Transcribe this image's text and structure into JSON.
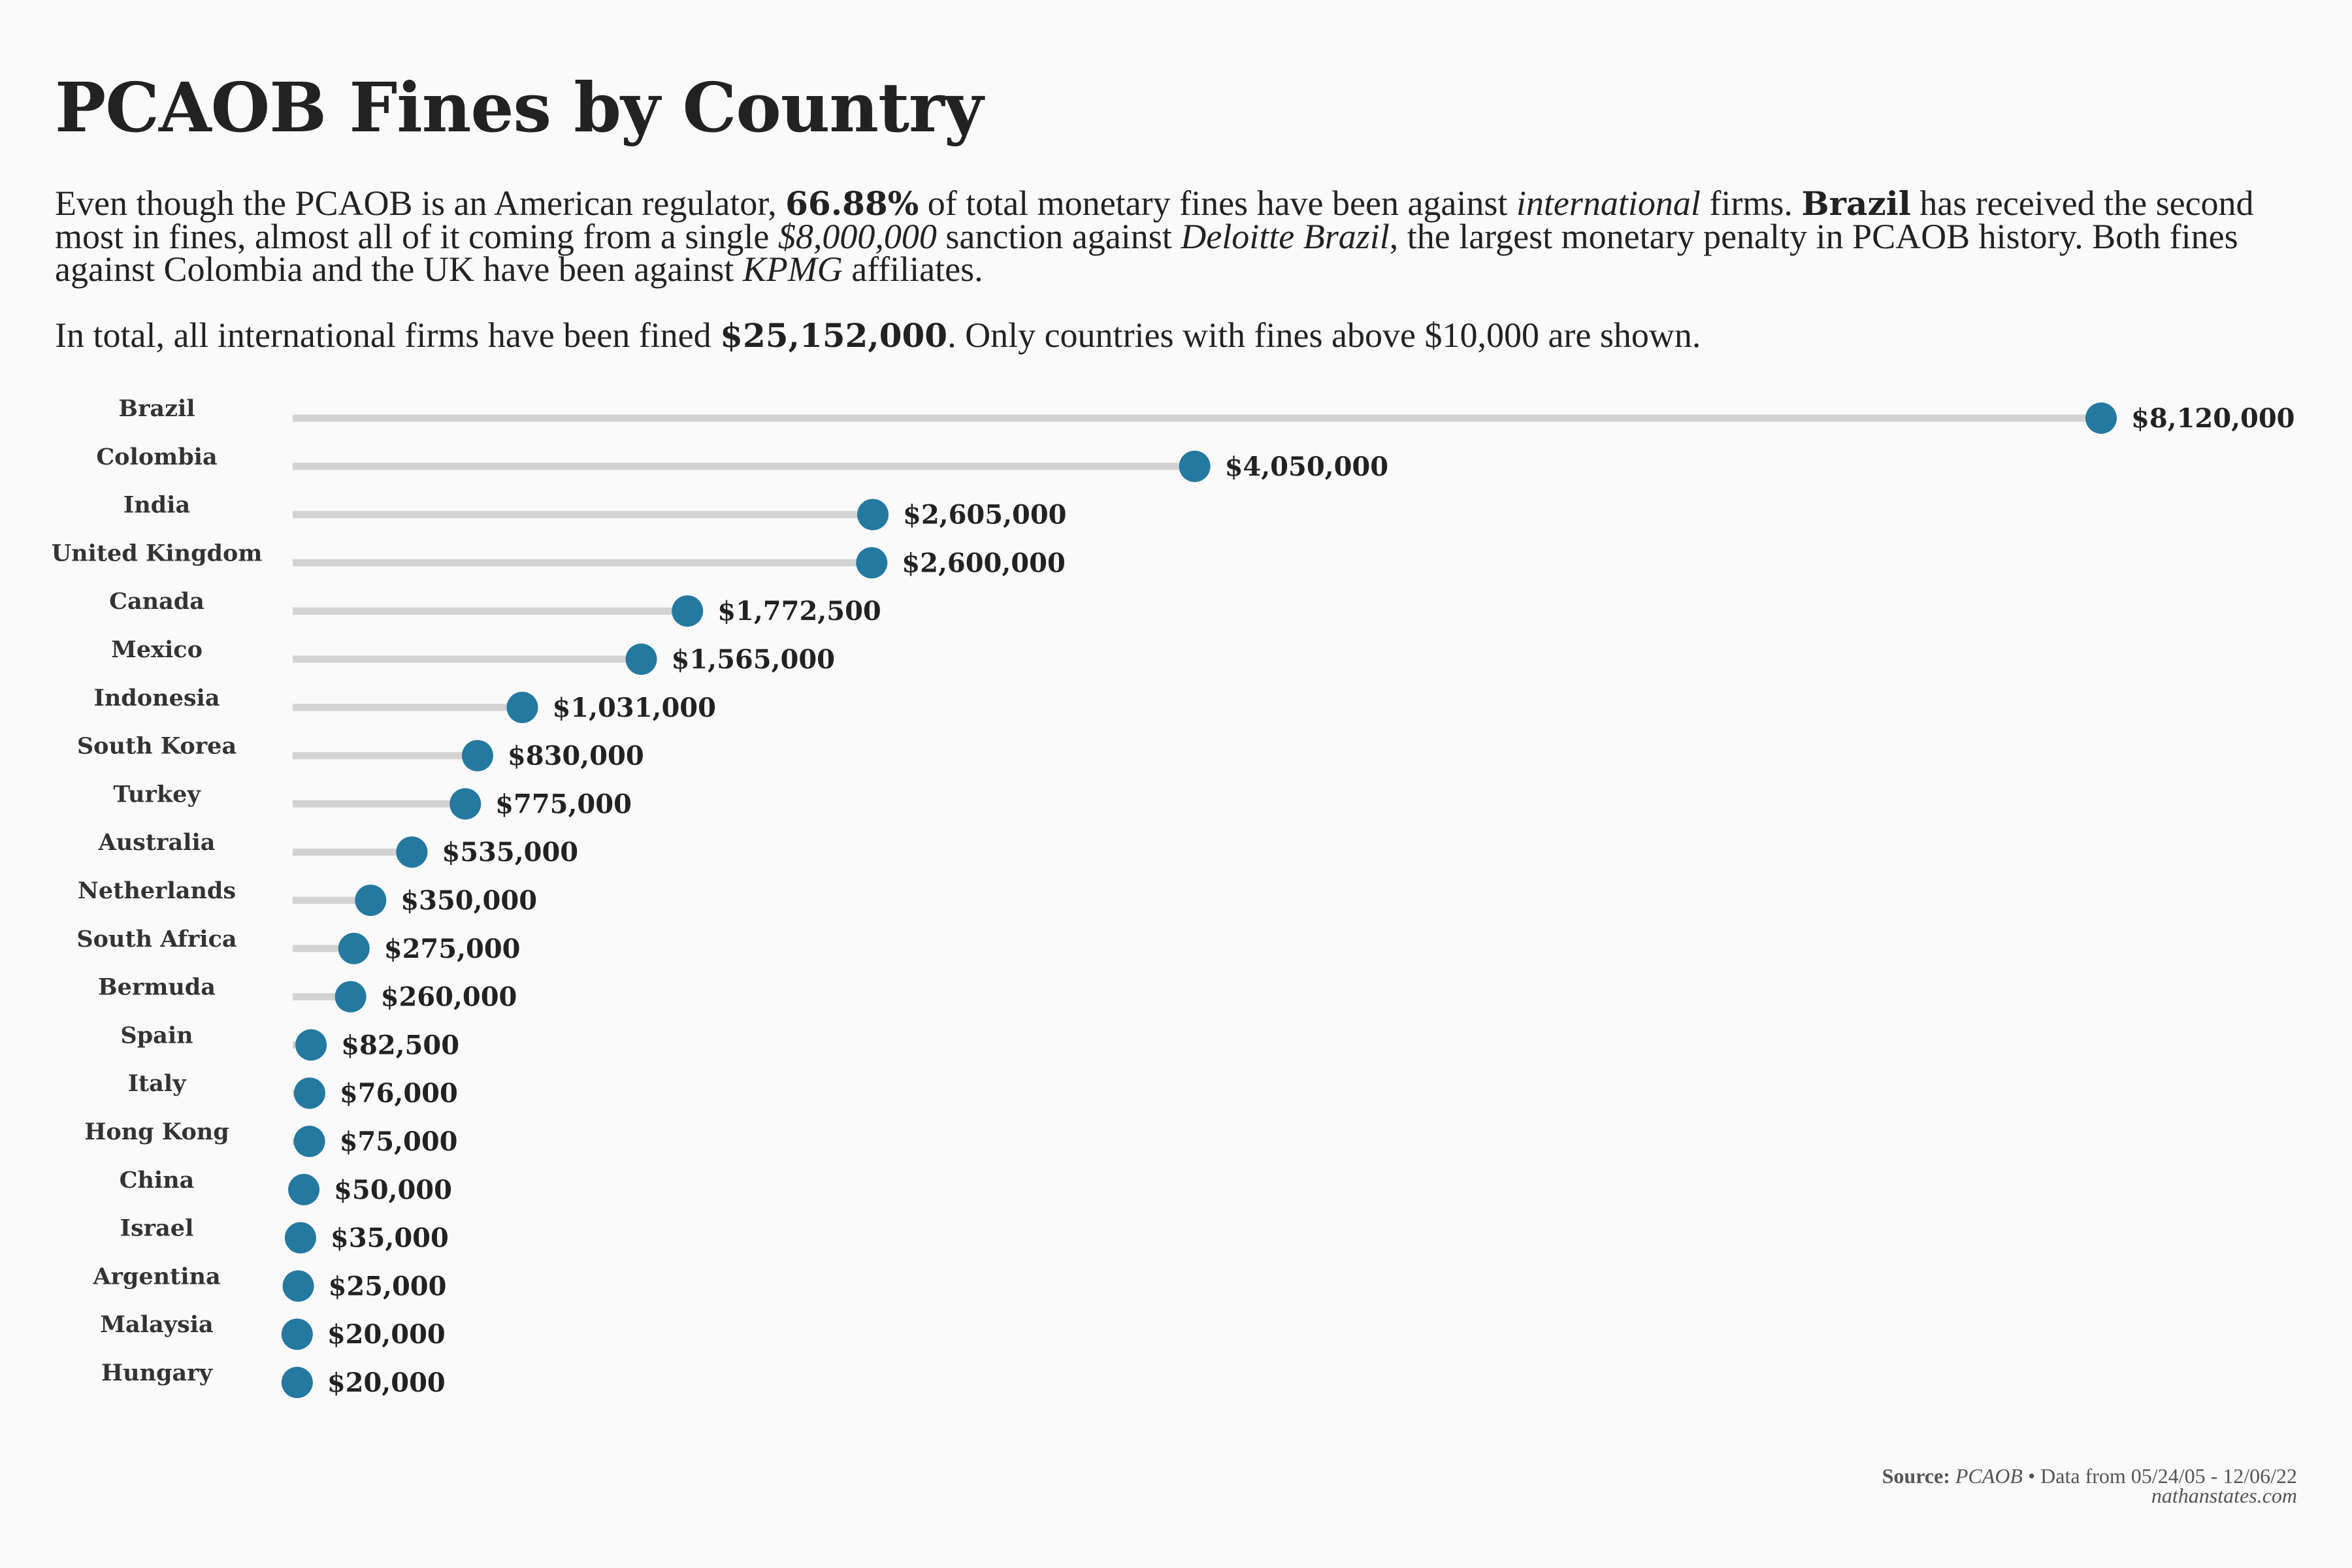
{
  "title": "PCAOB Fines by Country",
  "paragraph1": {
    "t1": "Even though the PCAOB is an American regulator, ",
    "b1": "66.88%",
    "t2": " of total monetary fines have been against ",
    "i1": "international",
    "t3": " firms. ",
    "b2": "Brazil",
    "t4": " has received the second most in fines, almost all of it coming from a single ",
    "i2": "$8,000,000",
    "t5": " sanction against ",
    "i3": "Deloitte Brazil",
    "t6": ", the largest monetary penalty in PCAOB history. Both fines against Colombia and the UK have been against ",
    "i4": "KPMG",
    "t7": " affiliates."
  },
  "paragraph2": {
    "t1": "In total, all international firms have been fined ",
    "b1": "$25,152,000",
    "t2": ". Only countries with fines above $10,000 are shown."
  },
  "footer": {
    "source_label": "Source:",
    "source_name": "PCAOB",
    "source_rest": " • Data from 05/24/05 - 12/06/22",
    "site": "nathanstates.com"
  },
  "colors": {
    "dot": "#2479a0",
    "stem": "#d3d3d3",
    "background": "#fafafa",
    "text": "#222222"
  },
  "chart_data": {
    "type": "lollipop",
    "orientation": "horizontal",
    "categories": [
      "Brazil",
      "Colombia",
      "India",
      "United Kingdom",
      "Canada",
      "Mexico",
      "Indonesia",
      "South Korea",
      "Turkey",
      "Australia",
      "Netherlands",
      "South Africa",
      "Bermuda",
      "Spain",
      "Italy",
      "Hong Kong",
      "China",
      "Israel",
      "Argentina",
      "Malaysia",
      "Hungary"
    ],
    "values": [
      8120000,
      4050000,
      2605000,
      2600000,
      1772500,
      1565000,
      1031000,
      830000,
      775000,
      535000,
      350000,
      275000,
      260000,
      82500,
      76000,
      75000,
      50000,
      35000,
      25000,
      20000,
      20000
    ],
    "value_labels": [
      "$8,120,000",
      "$4,050,000",
      "$2,605,000",
      "$2,600,000",
      "$1,772,500",
      "$1,565,000",
      "$1,031,000",
      "$830,000",
      "$775,000",
      "$535,000",
      "$350,000",
      "$275,000",
      "$260,000",
      "$82,500",
      "$76,000",
      "$75,000",
      "$50,000",
      "$35,000",
      "$25,000",
      "$20,000",
      "$20,000"
    ],
    "xlim": [
      0,
      8120000
    ],
    "grid": false,
    "legend": false
  }
}
